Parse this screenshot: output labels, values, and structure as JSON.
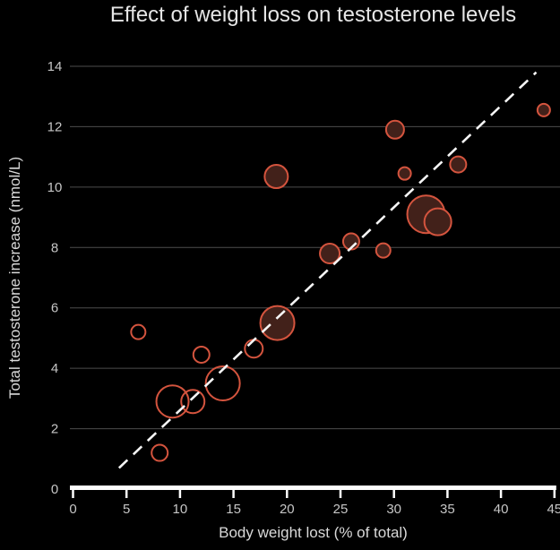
{
  "title": "Effect of weight loss on testosterone levels",
  "chart_data": {
    "type": "scatter",
    "title": "Effect of weight loss on testosterone levels",
    "xlabel": "Body weight lost (% of total)",
    "ylabel": "Total testosterone increase (nmol/L)",
    "xlim": [
      0,
      45
    ],
    "ylim": [
      0,
      14
    ],
    "x_ticks": [
      0,
      5,
      10,
      15,
      20,
      25,
      30,
      35,
      40,
      45
    ],
    "y_ticks": [
      0,
      2,
      4,
      6,
      8,
      10,
      12,
      14
    ],
    "grid": "horizontal-only",
    "legend": "none",
    "background_color": "#000000",
    "gridline_color": "#4d4d4d",
    "axis_color": "#fdfdfd",
    "tick_label_color": "#c6c6c6",
    "axis_title_color": "#d9d9d9",
    "title_color": "#e6e6e6",
    "bubble_stroke_color": "#d4543e",
    "bubble_fill_color": "#42211a",
    "trendline_color": "#f5f5f5",
    "points": [
      {
        "x": 6.1,
        "y": 5.2,
        "r": 8,
        "filled": false
      },
      {
        "x": 8.1,
        "y": 1.2,
        "r": 9,
        "filled": false
      },
      {
        "x": 9.3,
        "y": 2.9,
        "r": 18,
        "filled": false
      },
      {
        "x": 11.2,
        "y": 2.9,
        "r": 13,
        "filled": false
      },
      {
        "x": 12.0,
        "y": 4.45,
        "r": 9,
        "filled": false
      },
      {
        "x": 14.0,
        "y": 3.5,
        "r": 19,
        "filled": false
      },
      {
        "x": 16.9,
        "y": 4.65,
        "r": 10,
        "filled": false
      },
      {
        "x": 19.1,
        "y": 5.5,
        "r": 19,
        "filled": true
      },
      {
        "x": 19.0,
        "y": 10.35,
        "r": 13,
        "filled": true
      },
      {
        "x": 24.0,
        "y": 7.8,
        "r": 11,
        "filled": true
      },
      {
        "x": 26.0,
        "y": 8.2,
        "r": 9,
        "filled": true
      },
      {
        "x": 29.0,
        "y": 7.9,
        "r": 8,
        "filled": true
      },
      {
        "x": 30.1,
        "y": 11.9,
        "r": 10,
        "filled": true
      },
      {
        "x": 31.0,
        "y": 10.45,
        "r": 7,
        "filled": true
      },
      {
        "x": 33.0,
        "y": 9.1,
        "r": 21,
        "filled": true
      },
      {
        "x": 34.1,
        "y": 8.85,
        "r": 15,
        "filled": true
      },
      {
        "x": 36.0,
        "y": 10.75,
        "r": 9,
        "filled": true
      },
      {
        "x": 44.0,
        "y": 12.55,
        "r": 7,
        "filled": true
      }
    ],
    "trendline": {
      "style": "dashed",
      "x1": 4.3,
      "y1": 0.7,
      "x2": 43.3,
      "y2": 13.8
    }
  }
}
